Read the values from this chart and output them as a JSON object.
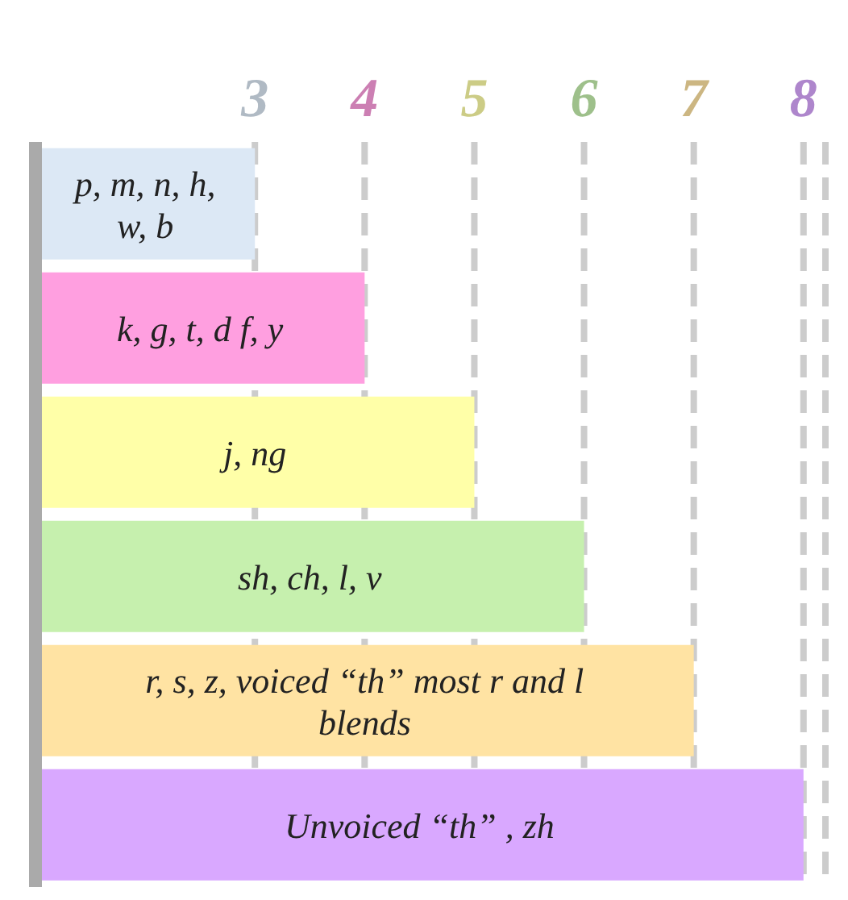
{
  "chart_data": {
    "type": "bar",
    "orientation": "horizontal",
    "categories": [
      "p, m, n, h, w, b",
      "k, g, t, d  f, y",
      "j, ng",
      "sh, ch, l, v",
      "r, s, z, voiced “th” most r and l blends",
      "Unvoiced “th” , zh"
    ],
    "values": [
      3,
      4,
      5,
      6,
      7,
      8
    ],
    "colors": [
      "#dce8f5",
      "#ff9fe0",
      "#ffffa8",
      "#c6f0ae",
      "#ffe3a3",
      "#d9a8ff"
    ],
    "xlim": [
      1,
      8.2
    ],
    "xticks": [
      3,
      4,
      5,
      6,
      7,
      8
    ],
    "grid": "x",
    "data_labels": false
  }
}
